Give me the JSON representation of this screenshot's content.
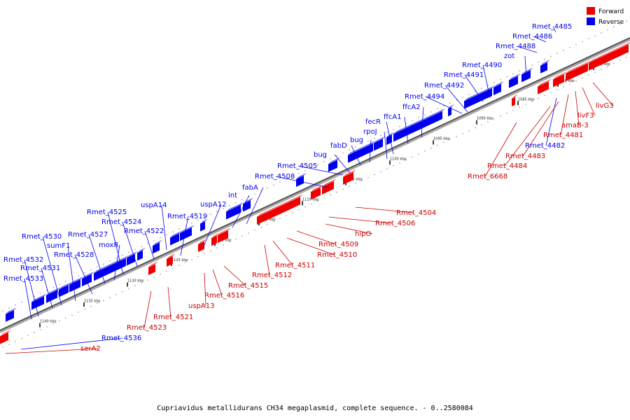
{
  "caption": "Cupriavidus metallidurans CH34 megaplasmid, complete sequence. - 0..2580084",
  "legend": {
    "forward_label": "Forward",
    "reverse_label": "Reverse",
    "forward_color": "#ee0000",
    "reverse_color": "#0000ee"
  },
  "ticks": [
    "1075 kbp",
    "1080 kbp",
    "1085 kbp",
    "1090 kbp",
    "1095 kbp",
    "1100 kbp",
    "1105 kbp",
    "1110 kbp",
    "1115 kbp",
    "1120 kbp",
    "1125 kbp",
    "1130 kbp",
    "1135 kbp",
    "1140 kbp"
  ],
  "reverse_genes": [
    "Rmet_4485",
    "Rmet_4486",
    "Rmet_4488",
    "zot",
    "Rmet_4490",
    "Rmet_4491",
    "Rmet_4492",
    "Rmet_4494",
    "ffcA2",
    "ffcA1",
    "fecR",
    "rpoJ",
    "bug",
    "fabD",
    "bug",
    "Rmet_4505",
    "Rmet_4508",
    "fabA",
    "int",
    "uspA12",
    "uspA14",
    "Rmet_4519",
    "Rmet_4522",
    "Rmet_4524",
    "Rmet_4525",
    "moxR",
    "Rmet_4527",
    "Rmet_4528",
    "sumF1",
    "Rmet_4530",
    "Rmet_4531",
    "Rmet_4532",
    "Rmet_4533",
    "Rmet_4536",
    "Rmet_4482"
  ],
  "forward_genes": [
    "livG3",
    "livF3",
    "amaB-3",
    "Rmet_4481",
    "Rmet_4483",
    "Rmet_4484",
    "Rmet_6668",
    "Rmet_4504",
    "Rmet_4506",
    "hipO",
    "Rmet_4509",
    "Rmet_4510",
    "Rmet_4511",
    "Rmet_4512",
    "Rmet_4515",
    "Rmet_4516",
    "uspA13",
    "Rmet_4521",
    "Rmet_4523",
    "serA2"
  ]
}
